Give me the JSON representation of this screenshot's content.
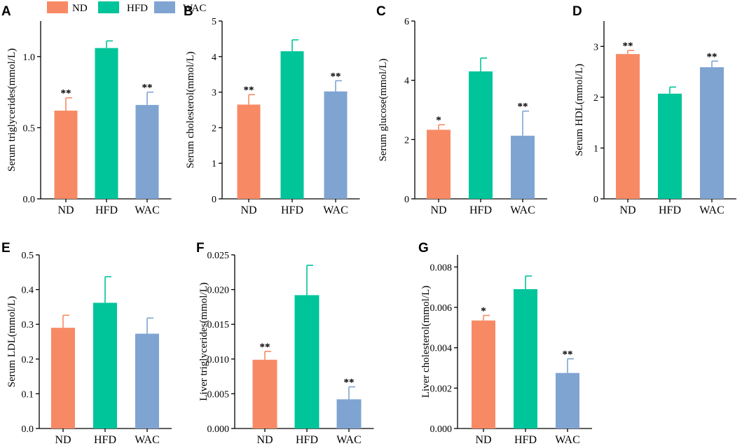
{
  "legend": [
    {
      "label": "ND",
      "color": "#F78A64"
    },
    {
      "label": "HFD",
      "color": "#00C49A"
    },
    {
      "label": "WAC",
      "color": "#7FA4D2"
    }
  ],
  "chart_data": [
    {
      "panel": "A",
      "type": "bar",
      "ylabel": "Serum triglycerides(mmol/L)",
      "categories": [
        "ND",
        "HFD",
        "WAC"
      ],
      "values": [
        0.62,
        1.06,
        0.66
      ],
      "errors": [
        0.09,
        0.05,
        0.09
      ],
      "significance": [
        "**",
        "",
        "**"
      ],
      "ylim": [
        0,
        1.25
      ],
      "yticks": [
        "0.0",
        "0.5",
        "1.0"
      ],
      "ytick_values": [
        0,
        0.5,
        1.0
      ]
    },
    {
      "panel": "B",
      "type": "bar",
      "ylabel": "Serum cholesterol(mmol/L)",
      "categories": [
        "ND",
        "HFD",
        "WAC"
      ],
      "values": [
        2.65,
        4.15,
        3.02
      ],
      "errors": [
        0.28,
        0.32,
        0.3
      ],
      "significance": [
        "**",
        "",
        "**"
      ],
      "ylim": [
        0,
        5
      ],
      "yticks": [
        "0",
        "1",
        "2",
        "3",
        "4",
        "5"
      ],
      "ytick_values": [
        0,
        1,
        2,
        3,
        4,
        5
      ]
    },
    {
      "panel": "C",
      "type": "bar",
      "ylabel": "Serum glucose(mmol/L)",
      "categories": [
        "ND",
        "HFD",
        "WAC"
      ],
      "values": [
        2.33,
        4.3,
        2.13
      ],
      "errors": [
        0.17,
        0.45,
        0.83
      ],
      "significance": [
        "*",
        "",
        "**"
      ],
      "ylim": [
        0,
        6
      ],
      "yticks": [
        "0",
        "2",
        "4",
        "6"
      ],
      "ytick_values": [
        0,
        2,
        4,
        6
      ]
    },
    {
      "panel": "D",
      "type": "bar",
      "ylabel": "Serum HDL(mmol/L)",
      "categories": [
        "ND",
        "HFD",
        "WAC"
      ],
      "values": [
        2.85,
        2.07,
        2.59
      ],
      "errors": [
        0.07,
        0.13,
        0.12
      ],
      "significance": [
        "**",
        "",
        "**"
      ],
      "ylim": [
        0,
        3.5
      ],
      "yticks": [
        "0",
        "1",
        "2",
        "3"
      ],
      "ytick_values": [
        0,
        1,
        2,
        3
      ]
    },
    {
      "panel": "E",
      "type": "bar",
      "ylabel": "Serum LDL(mmol/L)",
      "categories": [
        "ND",
        "HFD",
        "WAC"
      ],
      "values": [
        0.29,
        0.362,
        0.273
      ],
      "errors": [
        0.036,
        0.075,
        0.045
      ],
      "significance": [
        "",
        "",
        ""
      ],
      "ylim": [
        0,
        0.5
      ],
      "yticks": [
        "0.0",
        "0.1",
        "0.2",
        "0.3",
        "0.4",
        "0.5"
      ],
      "ytick_values": [
        0,
        0.1,
        0.2,
        0.3,
        0.4,
        0.5
      ]
    },
    {
      "panel": "F",
      "type": "bar",
      "ylabel": "Liver triglycerides(mmol/L)",
      "categories": [
        "ND",
        "HFD",
        "WAC"
      ],
      "values": [
        0.0099,
        0.0192,
        0.0042
      ],
      "errors": [
        0.0012,
        0.0043,
        0.0018
      ],
      "significance": [
        "**",
        "",
        "**"
      ],
      "ylim": [
        0,
        0.025
      ],
      "yticks": [
        "0.000",
        "0.005",
        "0.010",
        "0.015",
        "0.020",
        "0.025"
      ],
      "ytick_values": [
        0,
        0.005,
        0.01,
        0.015,
        0.02,
        0.025
      ]
    },
    {
      "panel": "G",
      "type": "bar",
      "ylabel": "Liver cholesterol(mmol/L)",
      "categories": [
        "ND",
        "HFD",
        "WAC"
      ],
      "values": [
        0.00535,
        0.0069,
        0.00275
      ],
      "errors": [
        0.00025,
        0.00065,
        0.0007
      ],
      "significance": [
        "*",
        "",
        "**"
      ],
      "ylim": [
        0,
        0.0086
      ],
      "yticks": [
        "0.000",
        "0.002",
        "0.004",
        "0.006",
        "0.008"
      ],
      "ytick_values": [
        0,
        0.002,
        0.004,
        0.006,
        0.008
      ]
    }
  ]
}
